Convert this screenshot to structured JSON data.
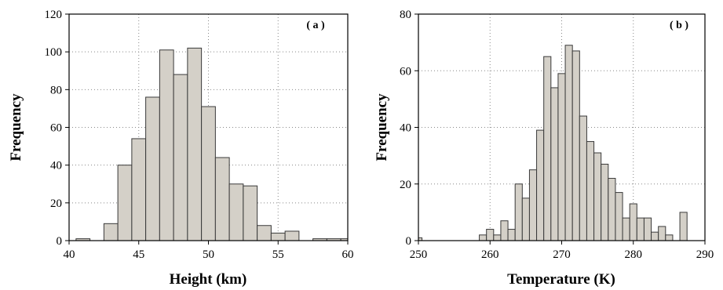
{
  "chart_data": [
    {
      "type": "bar",
      "panel_label": "( a )",
      "xlabel": "Height (km)",
      "ylabel": "Frequency",
      "xlim": [
        40,
        60
      ],
      "ylim": [
        0,
        120
      ],
      "xticks": [
        "40",
        "45",
        "50",
        "55",
        "60"
      ],
      "yticks": [
        "0",
        "20",
        "40",
        "60",
        "80",
        "100",
        "120"
      ],
      "grid": true,
      "bins": [
        {
          "x0": 40.5,
          "x1": 41.5,
          "value": 1
        },
        {
          "x0": 42.5,
          "x1": 43.5,
          "value": 9
        },
        {
          "x0": 43.5,
          "x1": 44.5,
          "value": 40
        },
        {
          "x0": 44.5,
          "x1": 45.5,
          "value": 54
        },
        {
          "x0": 45.5,
          "x1": 46.5,
          "value": 76
        },
        {
          "x0": 46.5,
          "x1": 47.5,
          "value": 101
        },
        {
          "x0": 47.5,
          "x1": 48.5,
          "value": 88
        },
        {
          "x0": 48.5,
          "x1": 49.5,
          "value": 102
        },
        {
          "x0": 49.5,
          "x1": 50.5,
          "value": 71
        },
        {
          "x0": 50.5,
          "x1": 51.5,
          "value": 44
        },
        {
          "x0": 51.5,
          "x1": 52.5,
          "value": 30
        },
        {
          "x0": 52.5,
          "x1": 53.5,
          "value": 29
        },
        {
          "x0": 53.5,
          "x1": 54.5,
          "value": 8
        },
        {
          "x0": 54.5,
          "x1": 55.5,
          "value": 4
        },
        {
          "x0": 55.5,
          "x1": 56.5,
          "value": 5
        },
        {
          "x0": 57.5,
          "x1": 58.5,
          "value": 1
        },
        {
          "x0": 58.5,
          "x1": 59.5,
          "value": 1
        },
        {
          "x0": 59.5,
          "x1": 60.0,
          "value": 1
        }
      ]
    },
    {
      "type": "bar",
      "panel_label": "( b )",
      "xlabel": "Temperature (K)",
      "ylabel": "Frequency",
      "xlim": [
        250,
        290
      ],
      "ylim": [
        0,
        80
      ],
      "xticks": [
        "250",
        "260",
        "270",
        "280",
        "290"
      ],
      "yticks": [
        "0",
        "20",
        "40",
        "60",
        "80"
      ],
      "grid": true,
      "bins": [
        {
          "x0": 250.0,
          "x1": 250.5,
          "value": 1
        },
        {
          "x0": 258.5,
          "x1": 259.5,
          "value": 2
        },
        {
          "x0": 259.5,
          "x1": 260.5,
          "value": 4
        },
        {
          "x0": 260.5,
          "x1": 261.5,
          "value": 2
        },
        {
          "x0": 261.5,
          "x1": 262.5,
          "value": 7
        },
        {
          "x0": 262.5,
          "x1": 263.5,
          "value": 4
        },
        {
          "x0": 263.5,
          "x1": 264.5,
          "value": 20
        },
        {
          "x0": 264.5,
          "x1": 265.5,
          "value": 15
        },
        {
          "x0": 265.5,
          "x1": 266.5,
          "value": 25
        },
        {
          "x0": 266.5,
          "x1": 267.5,
          "value": 39
        },
        {
          "x0": 267.5,
          "x1": 268.5,
          "value": 65
        },
        {
          "x0": 268.5,
          "x1": 269.5,
          "value": 54
        },
        {
          "x0": 269.5,
          "x1": 270.5,
          "value": 59
        },
        {
          "x0": 270.5,
          "x1": 271.5,
          "value": 69
        },
        {
          "x0": 271.5,
          "x1": 272.5,
          "value": 67
        },
        {
          "x0": 272.5,
          "x1": 273.5,
          "value": 44
        },
        {
          "x0": 273.5,
          "x1": 274.5,
          "value": 35
        },
        {
          "x0": 274.5,
          "x1": 275.5,
          "value": 31
        },
        {
          "x0": 275.5,
          "x1": 276.5,
          "value": 27
        },
        {
          "x0": 276.5,
          "x1": 277.5,
          "value": 22
        },
        {
          "x0": 277.5,
          "x1": 278.5,
          "value": 17
        },
        {
          "x0": 278.5,
          "x1": 279.5,
          "value": 8
        },
        {
          "x0": 279.5,
          "x1": 280.5,
          "value": 13
        },
        {
          "x0": 280.5,
          "x1": 281.5,
          "value": 8
        },
        {
          "x0": 281.5,
          "x1": 282.5,
          "value": 8
        },
        {
          "x0": 282.5,
          "x1": 283.5,
          "value": 3
        },
        {
          "x0": 283.5,
          "x1": 284.5,
          "value": 5
        },
        {
          "x0": 284.5,
          "x1": 285.5,
          "value": 2
        },
        {
          "x0": 286.5,
          "x1": 287.5,
          "value": 10
        }
      ]
    }
  ]
}
